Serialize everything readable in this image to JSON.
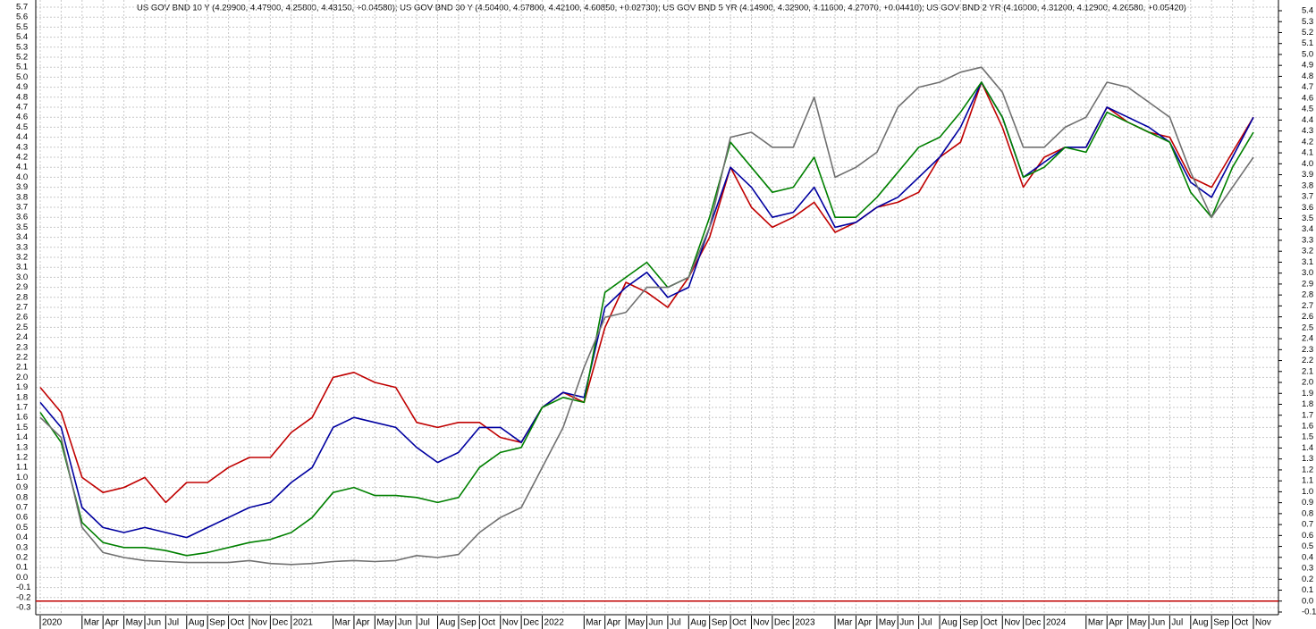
{
  "chart_data": {
    "type": "line",
    "title": "US GOV BND 10 Y (4.29900, 4.47900, 4.25800, 4.43150, +0.04580); US GOV BND 30 Y (4.50400, 4.67800, 4.42100, 4.60850, +0.02730); US GOV BND 5 YR (4.14900, 4.32900, 4.11600, 4.27070, +0.04410); US GOV BND 2 YR (4.16000, 4.31200, 4.12900, 4.26580, +0.05420)",
    "categories": [
      "2020",
      null,
      "Mar",
      "Apr",
      "May",
      "Jun",
      "Jul",
      "Aug",
      "Sep",
      "Oct",
      "Nov",
      "Dec",
      "2021",
      null,
      "Mar",
      "Apr",
      "May",
      "Jun",
      "Jul",
      "Aug",
      "Sep",
      "Oct",
      "Nov",
      "Dec",
      "2022",
      null,
      "Mar",
      "Apr",
      "May",
      "Jun",
      "Jul",
      "Aug",
      "Sep",
      "Oct",
      "Nov",
      "Dec",
      "2023",
      null,
      "Mar",
      "Apr",
      "May",
      "Jun",
      "Jul",
      "Aug",
      "Sep",
      "Oct",
      "Nov",
      "Dec",
      "2024",
      null,
      "Mar",
      "Apr",
      "May",
      "Jun",
      "Jul",
      "Aug",
      "Sep",
      "Oct",
      "Nov"
    ],
    "series": [
      {
        "color": "#c00000",
        "values": [
          1.9,
          1.65,
          1.0,
          0.85,
          0.9,
          1.0,
          0.75,
          0.95,
          0.95,
          1.1,
          1.2,
          1.2,
          1.45,
          1.6,
          2.0,
          2.05,
          1.95,
          1.9,
          1.55,
          1.5,
          1.55,
          1.55,
          1.4,
          1.35,
          1.7,
          1.85,
          1.75,
          2.5,
          2.95,
          2.85,
          2.7,
          3.0,
          3.4,
          4.1,
          3.7,
          3.5,
          3.6,
          3.75,
          3.45,
          3.55,
          3.7,
          3.75,
          3.85,
          4.2,
          4.35,
          4.95,
          4.5,
          3.9,
          4.2,
          4.3,
          4.3,
          4.7,
          4.55,
          4.45,
          4.4,
          4.0,
          3.9,
          4.25,
          4.6
        ]
      },
      {
        "color": "#0000a0",
        "values": [
          1.75,
          1.5,
          0.7,
          0.5,
          0.45,
          0.5,
          0.45,
          0.4,
          0.5,
          0.6,
          0.7,
          0.75,
          0.95,
          1.1,
          1.5,
          1.6,
          1.55,
          1.5,
          1.3,
          1.15,
          1.25,
          1.5,
          1.5,
          1.35,
          1.7,
          1.85,
          1.8,
          2.7,
          2.9,
          3.05,
          2.8,
          2.9,
          3.5,
          4.1,
          3.9,
          3.6,
          3.65,
          3.9,
          3.5,
          3.55,
          3.7,
          3.8,
          4.0,
          4.2,
          4.5,
          4.95,
          4.6,
          4.0,
          4.15,
          4.3,
          4.3,
          4.7,
          4.6,
          4.5,
          4.35,
          3.95,
          3.8,
          4.2,
          4.6
        ]
      },
      {
        "color": "#008000",
        "values": [
          1.65,
          1.35,
          0.55,
          0.35,
          0.3,
          0.3,
          0.27,
          0.22,
          0.25,
          0.3,
          0.35,
          0.38,
          0.45,
          0.6,
          0.85,
          0.9,
          0.82,
          0.82,
          0.8,
          0.75,
          0.8,
          1.1,
          1.25,
          1.3,
          1.7,
          1.8,
          1.75,
          2.85,
          3.0,
          3.15,
          2.9,
          3.0,
          3.6,
          4.35,
          4.1,
          3.85,
          3.9,
          4.2,
          3.6,
          3.6,
          3.8,
          4.05,
          4.3,
          4.4,
          4.65,
          4.95,
          4.6,
          4.0,
          4.1,
          4.3,
          4.25,
          4.65,
          4.55,
          4.45,
          4.35,
          3.85,
          3.6,
          4.1,
          4.45
        ]
      },
      {
        "color": "#707070",
        "values": [
          1.6,
          1.4,
          0.5,
          0.25,
          0.2,
          0.17,
          0.16,
          0.15,
          0.15,
          0.15,
          0.17,
          0.14,
          0.13,
          0.14,
          0.16,
          0.17,
          0.16,
          0.17,
          0.22,
          0.2,
          0.23,
          0.45,
          0.6,
          0.7,
          1.1,
          1.5,
          2.1,
          2.6,
          2.65,
          2.9,
          2.9,
          3.0,
          3.5,
          4.4,
          4.45,
          4.3,
          4.3,
          4.8,
          4.0,
          4.1,
          4.25,
          4.7,
          4.9,
          4.95,
          5.05,
          5.1,
          4.85,
          4.3,
          4.3,
          4.5,
          4.6,
          4.95,
          4.9,
          4.75,
          4.6,
          4.05,
          3.6,
          3.9,
          4.2
        ]
      }
    ],
    "ylim": [
      -0.3,
      5.7
    ],
    "yticks": [
      -0.3,
      -0.2,
      -0.1,
      {
        "value": 0,
        "label": "0.0"
      },
      0.1,
      0.2,
      0.3,
      0.4,
      0.5,
      0.6,
      0.7,
      0.8,
      0.9,
      {
        "value": 1,
        "label": "1.0"
      },
      1.1,
      1.2,
      1.3,
      1.4,
      1.5,
      1.6,
      1.7,
      1.8,
      1.9,
      {
        "value": 2,
        "label": "2.0"
      },
      2.1,
      2.2,
      2.3,
      2.4,
      2.5,
      2.6,
      2.7,
      2.8,
      2.9,
      {
        "value": 3,
        "label": "3.0"
      },
      3.1,
      3.2,
      3.3,
      3.4,
      3.5,
      3.6,
      3.7,
      3.8,
      3.9,
      {
        "value": 4,
        "label": "4.0"
      },
      4.1,
      4.2,
      4.3,
      4.4,
      4.5,
      4.6,
      4.7,
      4.8,
      4.9,
      {
        "value": 5,
        "label": "5.0"
      },
      5.1,
      5.2,
      5.3,
      5.4,
      5.5,
      5.6,
      5.7
    ],
    "y2lim": [
      -0.1,
      5.4
    ],
    "y2ticks": [
      -0.1,
      {
        "value": 0,
        "label": "0.0"
      },
      0.1,
      0.2,
      0.3,
      0.4,
      0.5,
      0.6,
      0.7,
      0.8,
      0.9,
      {
        "value": 1,
        "label": "1.0"
      },
      1.1,
      1.2,
      1.3,
      1.4,
      1.5,
      1.6,
      1.7,
      1.8,
      1.9,
      {
        "value": 2,
        "label": "2.0"
      },
      2.1,
      2.2,
      2.3,
      2.4,
      2.5,
      2.6,
      2.7,
      2.8,
      2.9,
      {
        "value": 3,
        "label": "3.0"
      },
      3.1,
      3.2,
      3.3,
      3.4,
      3.5,
      3.6,
      3.7,
      3.8,
      3.9,
      {
        "value": 4,
        "label": "4.0"
      },
      4.1,
      4.2,
      4.3,
      4.4,
      4.5,
      4.6,
      4.7,
      4.8,
      4.9,
      {
        "value": 5,
        "label": "5.0"
      },
      5.1,
      5.2,
      5.3,
      5.4
    ],
    "hline": {
      "value": 0,
      "axis": "y2",
      "color": "#c00000"
    },
    "grid": true
  }
}
